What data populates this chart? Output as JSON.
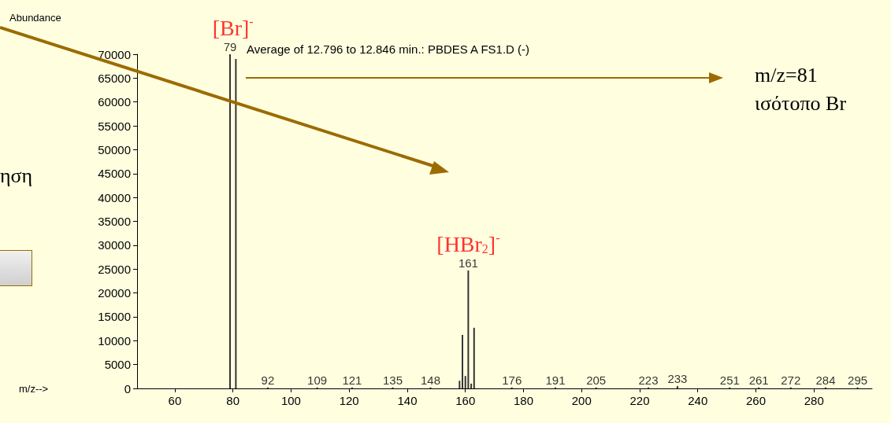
{
  "chart_data": {
    "type": "bar",
    "title": "Average of 12.796 to 12.846 min.: PBDES A FS1.D (-)",
    "xlabel": "m/z-->",
    "ylabel": "Abundance",
    "series": [
      {
        "color": "#333333",
        "x": [
          79,
          81,
          92,
          109,
          121,
          135,
          148,
          158,
          159,
          160,
          161,
          162,
          163,
          176,
          191,
          205,
          223,
          233,
          251,
          261,
          272,
          284,
          295
        ],
        "values": [
          70000,
          69000,
          200,
          200,
          200,
          200,
          200,
          1600,
          11200,
          2600,
          24700,
          1000,
          12700,
          200,
          200,
          200,
          200,
          500,
          200,
          200,
          200,
          200,
          200
        ]
      }
    ],
    "xlim": [
      47,
      300
    ],
    "xticks": [
      60,
      80,
      100,
      120,
      140,
      160,
      180,
      200,
      220,
      240,
      260,
      280
    ],
    "ylim": [
      0,
      70000
    ],
    "yticks": [
      0,
      5000,
      10000,
      15000,
      20000,
      25000,
      30000,
      35000,
      40000,
      45000,
      50000,
      55000,
      60000,
      65000,
      70000
    ],
    "grid": false,
    "annotations": [
      {
        "text": "[Br]$^{-}$",
        "x": 80,
        "y": 70000
      },
      {
        "text": "[HBr$_{2}$]$^{-}$",
        "x": 161,
        "y": 24700
      },
      "m/z=81",
      "ισότοπο Br",
      "ηση",
      {
        "text": "79",
        "x": 79,
        "y": 70000
      },
      {
        "text": "92",
        "x": 92,
        "y": 200
      },
      {
        "text": "109",
        "x": 109,
        "y": 200
      },
      {
        "text": "121",
        "x": 121,
        "y": 200
      },
      {
        "text": "135",
        "x": 135,
        "y": 200
      },
      {
        "text": "148",
        "x": 148,
        "y": 200
      },
      {
        "text": "161",
        "x": 161,
        "y": 24700
      },
      {
        "text": "176",
        "x": 176,
        "y": 200
      },
      {
        "text": "191",
        "x": 191,
        "y": 200
      },
      {
        "text": "205",
        "x": 205,
        "y": 200
      },
      {
        "text": "223",
        "x": 223,
        "y": 200
      },
      {
        "text": "233",
        "x": 233,
        "y": 500
      },
      {
        "text": "251",
        "x": 251,
        "y": 200
      },
      {
        "text": "261",
        "x": 261,
        "y": 200
      },
      {
        "text": "272",
        "x": 272,
        "y": 200
      },
      {
        "text": "284",
        "x": 284,
        "y": 200
      },
      {
        "text": "295",
        "x": 295,
        "y": 200
      }
    ]
  }
}
